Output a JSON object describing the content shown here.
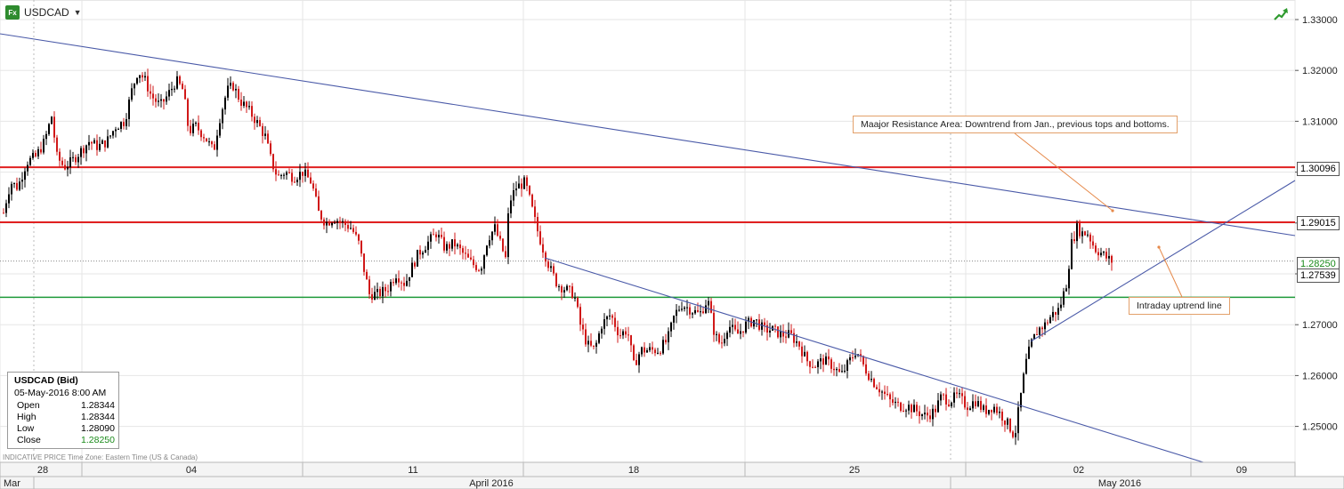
{
  "header": {
    "symbol": "USDCAD",
    "fx_badge": "Fx",
    "dropdown_glyph": "▼"
  },
  "info_box": {
    "title": "USDCAD (Bid)",
    "datetime": "05-May-2016 8:00 AM",
    "rows": [
      {
        "label": "Open",
        "value": "1.28344"
      },
      {
        "label": "High",
        "value": "1.28344"
      },
      {
        "label": "Low",
        "value": "1.28090"
      },
      {
        "label": "Close",
        "value": "1.28250"
      }
    ]
  },
  "footer_note": "INDICATIVE PRICE    Time Zone: Eastern Time (US & Canada)",
  "annotations": {
    "resistance": "Maajor Resistance Area: Downtrend from Jan., previous tops and bottoms.",
    "uptrend": "Intraday uptrend line"
  },
  "price_tags": {
    "r1": "1.30096",
    "r2": "1.29015",
    "current": "1.28250",
    "support": "1.27539"
  },
  "colors": {
    "resistance_line": "#e02020",
    "support_line": "#1e9a3a",
    "trend_line": "#4a5aa8",
    "candle_up": "#000000",
    "candle_down": "#d01818",
    "annotation_border": "#e3a06a",
    "grid": "#e6e6e6",
    "current_tag_text": "#1a8a1a"
  },
  "chart_data": {
    "type": "candlestick",
    "symbol": "USDCAD",
    "interval": "hourly",
    "ylim": [
      1.244,
      1.333
    ],
    "y_ticks": [
      "1.33000",
      "1.32000",
      "1.31000",
      "1.30000",
      "1.29000",
      "1.28000",
      "1.27000",
      "1.26000",
      "1.25000"
    ],
    "x_day_labels": [
      "28",
      "04",
      "11",
      "18",
      "25",
      "02",
      "09"
    ],
    "x_month_labels": [
      "Mar",
      "April 2016",
      "May 2016"
    ],
    "horizontal_levels": [
      {
        "price": 1.30096,
        "role": "resistance"
      },
      {
        "price": 1.29015,
        "role": "resistance"
      },
      {
        "price": 1.27539,
        "role": "support"
      },
      {
        "price": 1.2825,
        "role": "current"
      }
    ],
    "price_path": [
      [
        0,
        1.288
      ],
      [
        5,
        1.293
      ],
      [
        12,
        1.298
      ],
      [
        20,
        1.297
      ],
      [
        30,
        1.302
      ],
      [
        40,
        1.303
      ],
      [
        50,
        1.306
      ],
      [
        58,
        1.311
      ],
      [
        64,
        1.303
      ],
      [
        72,
        1.301
      ],
      [
        80,
        1.302
      ],
      [
        90,
        1.304
      ],
      [
        100,
        1.306
      ],
      [
        110,
        1.305
      ],
      [
        120,
        1.306
      ],
      [
        130,
        1.309
      ],
      [
        140,
        1.31
      ],
      [
        148,
        1.316
      ],
      [
        155,
        1.32
      ],
      [
        163,
        1.318
      ],
      [
        170,
        1.315
      ],
      [
        180,
        1.313
      ],
      [
        188,
        1.315
      ],
      [
        198,
        1.318
      ],
      [
        206,
        1.316
      ],
      [
        212,
        1.308
      ],
      [
        220,
        1.309
      ],
      [
        230,
        1.307
      ],
      [
        240,
        1.304
      ],
      [
        246,
        1.31
      ],
      [
        255,
        1.316
      ],
      [
        262,
        1.317
      ],
      [
        270,
        1.314
      ],
      [
        280,
        1.312
      ],
      [
        288,
        1.31
      ],
      [
        298,
        1.307
      ],
      [
        305,
        1.302
      ],
      [
        312,
        1.299
      ],
      [
        320,
        1.3
      ],
      [
        330,
        1.299
      ],
      [
        340,
        1.3
      ],
      [
        350,
        1.298
      ],
      [
        358,
        1.292
      ],
      [
        366,
        1.29
      ],
      [
        375,
        1.291
      ],
      [
        385,
        1.29
      ],
      [
        395,
        1.289
      ],
      [
        403,
        1.286
      ],
      [
        410,
        1.28
      ],
      [
        415,
        1.276
      ],
      [
        425,
        1.276
      ],
      [
        435,
        1.277
      ],
      [
        445,
        1.28
      ],
      [
        455,
        1.278
      ],
      [
        462,
        1.281
      ],
      [
        470,
        1.284
      ],
      [
        480,
        1.286
      ],
      [
        490,
        1.288
      ],
      [
        500,
        1.285
      ],
      [
        510,
        1.286
      ],
      [
        520,
        1.284
      ],
      [
        530,
        1.282
      ],
      [
        540,
        1.281
      ],
      [
        548,
        1.287
      ],
      [
        556,
        1.289
      ],
      [
        562,
        1.286
      ],
      [
        568,
        1.283
      ],
      [
        572,
        1.294
      ],
      [
        580,
        1.297
      ],
      [
        590,
        1.298
      ],
      [
        596,
        1.294
      ],
      [
        603,
        1.289
      ],
      [
        610,
        1.285
      ],
      [
        618,
        1.281
      ],
      [
        626,
        1.278
      ],
      [
        635,
        1.277
      ],
      [
        645,
        1.276
      ],
      [
        652,
        1.27
      ],
      [
        660,
        1.266
      ],
      [
        668,
        1.265
      ],
      [
        676,
        1.27
      ],
      [
        686,
        1.272
      ],
      [
        696,
        1.268
      ],
      [
        705,
        1.269
      ],
      [
        712,
        1.262
      ],
      [
        720,
        1.265
      ],
      [
        730,
        1.265
      ],
      [
        740,
        1.265
      ],
      [
        750,
        1.267
      ],
      [
        758,
        1.272
      ],
      [
        766,
        1.274
      ],
      [
        776,
        1.273
      ],
      [
        786,
        1.272
      ],
      [
        795,
        1.275
      ],
      [
        803,
        1.268
      ],
      [
        810,
        1.266
      ],
      [
        818,
        1.27
      ],
      [
        828,
        1.268
      ],
      [
        838,
        1.27
      ],
      [
        848,
        1.271
      ],
      [
        858,
        1.269
      ],
      [
        868,
        1.269
      ],
      [
        878,
        1.268
      ],
      [
        888,
        1.268
      ],
      [
        898,
        1.266
      ],
      [
        906,
        1.263
      ],
      [
        915,
        1.262
      ],
      [
        925,
        1.263
      ],
      [
        935,
        1.262
      ],
      [
        945,
        1.26
      ],
      [
        955,
        1.263
      ],
      [
        962,
        1.265
      ],
      [
        970,
        1.262
      ],
      [
        980,
        1.259
      ],
      [
        990,
        1.257
      ],
      [
        1000,
        1.255
      ],
      [
        1010,
        1.254
      ],
      [
        1020,
        1.254
      ],
      [
        1030,
        1.253
      ],
      [
        1040,
        1.252
      ],
      [
        1050,
        1.253
      ],
      [
        1058,
        1.256
      ],
      [
        1066,
        1.255
      ],
      [
        1076,
        1.256
      ],
      [
        1086,
        1.254
      ],
      [
        1096,
        1.255
      ],
      [
        1106,
        1.253
      ],
      [
        1116,
        1.254
      ],
      [
        1126,
        1.252
      ],
      [
        1134,
        1.25
      ],
      [
        1140,
        1.248
      ],
      [
        1146,
        1.255
      ],
      [
        1152,
        1.262
      ],
      [
        1158,
        1.266
      ],
      [
        1166,
        1.269
      ],
      [
        1174,
        1.27
      ],
      [
        1182,
        1.272
      ],
      [
        1190,
        1.273
      ],
      [
        1198,
        1.278
      ],
      [
        1204,
        1.286
      ],
      [
        1210,
        1.289
      ],
      [
        1216,
        1.288
      ],
      [
        1222,
        1.288
      ],
      [
        1230,
        1.285
      ],
      [
        1238,
        1.284
      ],
      [
        1244,
        1.283
      ],
      [
        1249,
        1.2825
      ]
    ]
  }
}
